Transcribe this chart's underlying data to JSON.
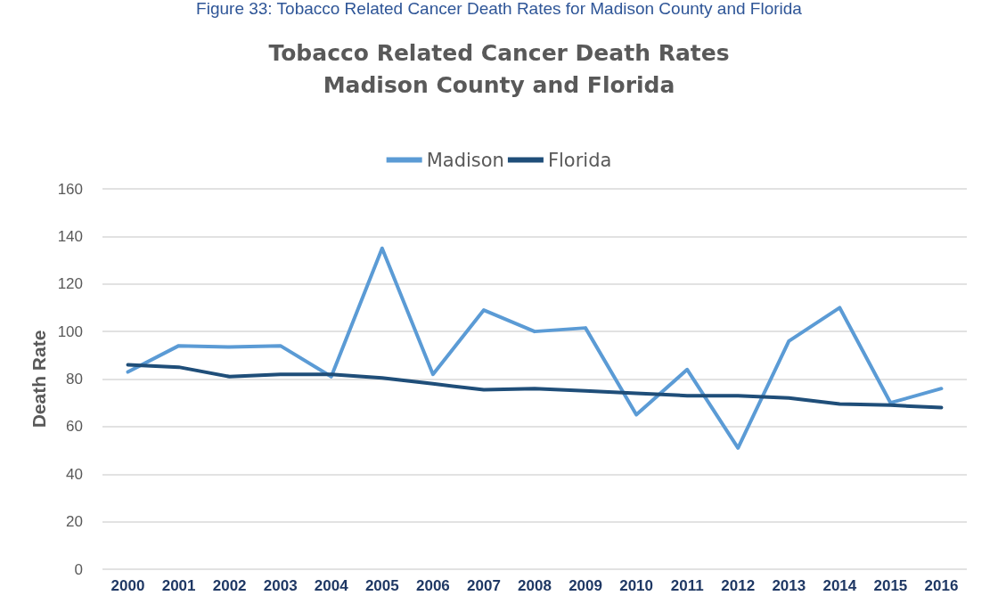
{
  "chart_data": {
    "type": "line",
    "title": "Tobacco Related Cancer Death Rates\nMadison County and Florida",
    "ylabel": "Death Rate",
    "annotations": [
      "Figure 33: Tobacco Related Cancer Death Rates for Madison County and Florida"
    ],
    "categories": [
      "2000",
      "2001",
      "2002",
      "2003",
      "2004",
      "2005",
      "2006",
      "2007",
      "2008",
      "2009",
      "2010",
      "2011",
      "2012",
      "2013",
      "2014",
      "2015",
      "2016"
    ],
    "series": [
      {
        "name": "Madison",
        "color": "#5b9bd5",
        "values": [
          83,
          94,
          93.5,
          94,
          81,
          135,
          82,
          109,
          100,
          101.5,
          65,
          84,
          51,
          96,
          110,
          70,
          76
        ]
      },
      {
        "name": "Florida",
        "color": "#1f4e79",
        "values": [
          86,
          85,
          81,
          82,
          82,
          80.5,
          78,
          75.5,
          76,
          75,
          74,
          73,
          73,
          72,
          69.5,
          69,
          68
        ]
      }
    ],
    "ylim": [
      0,
      160
    ],
    "yticks": [
      0,
      20,
      40,
      60,
      80,
      100,
      120,
      140,
      160
    ],
    "grid": "y",
    "legend": "top",
    "marker": "none",
    "line_style": "solid"
  }
}
